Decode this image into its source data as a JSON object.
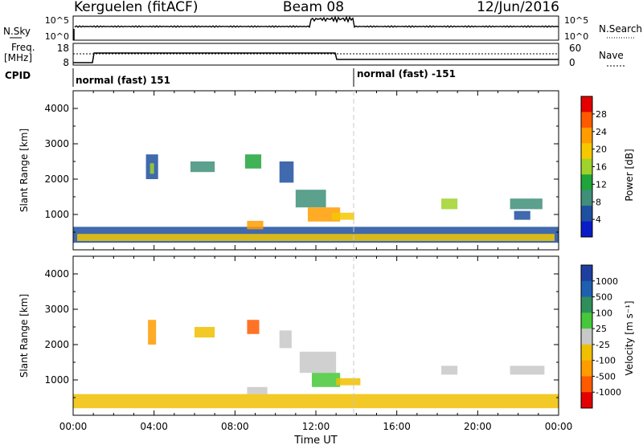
{
  "header": {
    "station": "Kerguelen (fitACF)",
    "beam": "Beam 08",
    "date": "12/Jun/2016"
  },
  "top_panel": {
    "left_label_1": "N.Sky",
    "left_ticks_1": [
      "10^5",
      "10^0"
    ],
    "right_label_1": "N.Search",
    "right_ticks_1": [
      "10^5",
      "10^0"
    ],
    "left_label_2": "Freq.",
    "left_label_2b": "[MHz]",
    "left_ticks_2": [
      "18",
      "8"
    ],
    "right_label_2": "Nave",
    "right_ticks_2": [
      "60",
      "0"
    ],
    "cpid_label": "CPID",
    "cpid_segments": [
      "normal (fast) 151",
      "normal (fast) -151"
    ]
  },
  "colors": {
    "line": "#000000",
    "divider": "#c8c8c8"
  },
  "chart_data": [
    {
      "type": "heatmap",
      "title": "",
      "xlabel": "Time UT",
      "ylabel": "Slant Range [km]",
      "x_ticks": [
        "00:00",
        "04:00",
        "08:00",
        "12:00",
        "16:00",
        "20:00",
        "00:00"
      ],
      "y_ticks": [
        "1000",
        "2000",
        "3000",
        "4000"
      ],
      "colorbar_label": "Power [dB]",
      "colorbar_ticks": [
        "28",
        "24",
        "20",
        "16",
        "12",
        "8",
        "4"
      ],
      "colorbar_colors": [
        "#e40000",
        "#ff5a00",
        "#ff9c00",
        "#f5c800",
        "#9fd22a",
        "#1fa53a",
        "#3f8f7a",
        "#1f4fa0",
        "#0a1cc8"
      ],
      "ylim": [
        0,
        4500
      ],
      "xlim_hours": [
        0,
        24
      ],
      "regions": [
        {
          "t0": 0.0,
          "t1": 24.0,
          "r0": 200,
          "r1": 650,
          "color": "#1f4fa0"
        },
        {
          "t0": 0.2,
          "t1": 23.8,
          "r0": 250,
          "r1": 450,
          "color": "#f5c800"
        },
        {
          "t0": 3.6,
          "t1": 4.2,
          "r0": 2000,
          "r1": 2700,
          "color": "#1f4fa0"
        },
        {
          "t0": 3.8,
          "t1": 4.0,
          "r0": 2150,
          "r1": 2450,
          "color": "#9fd22a"
        },
        {
          "t0": 5.8,
          "t1": 7.0,
          "r0": 2200,
          "r1": 2500,
          "color": "#3f8f7a"
        },
        {
          "t0": 8.5,
          "t1": 9.3,
          "r0": 2300,
          "r1": 2700,
          "color": "#1fa53a"
        },
        {
          "t0": 8.6,
          "t1": 9.4,
          "r0": 580,
          "r1": 820,
          "color": "#ff9c00"
        },
        {
          "t0": 10.2,
          "t1": 10.9,
          "r0": 1900,
          "r1": 2500,
          "color": "#1f4fa0"
        },
        {
          "t0": 11.0,
          "t1": 12.5,
          "r0": 1200,
          "r1": 1700,
          "color": "#3f8f7a"
        },
        {
          "t0": 11.6,
          "t1": 13.2,
          "r0": 800,
          "r1": 1200,
          "color": "#ff9c00"
        },
        {
          "t0": 12.8,
          "t1": 13.9,
          "r0": 850,
          "r1": 1050,
          "color": "#f5c800"
        },
        {
          "t0": 18.2,
          "t1": 19.0,
          "r0": 1150,
          "r1": 1450,
          "color": "#9fd22a"
        },
        {
          "t0": 21.6,
          "t1": 23.2,
          "r0": 1150,
          "r1": 1450,
          "color": "#3f8f7a"
        },
        {
          "t0": 21.8,
          "t1": 22.6,
          "r0": 850,
          "r1": 1100,
          "color": "#1f4fa0"
        }
      ]
    },
    {
      "type": "heatmap",
      "title": "",
      "xlabel": "Time UT",
      "ylabel": "Slant Range [km]",
      "x_ticks": [
        "00:00",
        "04:00",
        "08:00",
        "12:00",
        "16:00",
        "20:00",
        "00:00"
      ],
      "y_ticks": [
        "1000",
        "2000",
        "3000",
        "4000"
      ],
      "colorbar_label": "Velocity [m s⁻¹]",
      "colorbar_ticks": [
        "1000",
        "500",
        "100",
        "25",
        "-25",
        "-100",
        "-500",
        "-1000"
      ],
      "colorbar_colors": [
        "#1f3fa0",
        "#1f5fb0",
        "#2f8f5a",
        "#46c83a",
        "#c8c8c8",
        "#f0c000",
        "#ff9c00",
        "#ff5a00",
        "#e40000"
      ],
      "ylim": [
        0,
        4500
      ],
      "xlim_hours": [
        0,
        24
      ],
      "regions": [
        {
          "t0": 0.0,
          "t1": 24.0,
          "r0": 200,
          "r1": 600,
          "color": "#f0c000"
        },
        {
          "t0": 3.7,
          "t1": 4.1,
          "r0": 2000,
          "r1": 2700,
          "color": "#ff9c00"
        },
        {
          "t0": 6.0,
          "t1": 7.0,
          "r0": 2200,
          "r1": 2500,
          "color": "#f0c000"
        },
        {
          "t0": 8.6,
          "t1": 9.2,
          "r0": 2300,
          "r1": 2700,
          "color": "#ff5a00"
        },
        {
          "t0": 8.6,
          "t1": 9.6,
          "r0": 600,
          "r1": 800,
          "color": "#c8c8c8"
        },
        {
          "t0": 10.2,
          "t1": 10.8,
          "r0": 1900,
          "r1": 2400,
          "color": "#c8c8c8"
        },
        {
          "t0": 11.2,
          "t1": 13.0,
          "r0": 1200,
          "r1": 1800,
          "color": "#c8c8c8"
        },
        {
          "t0": 11.8,
          "t1": 13.2,
          "r0": 800,
          "r1": 1200,
          "color": "#46c83a"
        },
        {
          "t0": 13.0,
          "t1": 14.2,
          "r0": 850,
          "r1": 1050,
          "color": "#f0c000"
        },
        {
          "t0": 18.2,
          "t1": 19.0,
          "r0": 1150,
          "r1": 1400,
          "color": "#c8c8c8"
        },
        {
          "t0": 21.6,
          "t1": 23.3,
          "r0": 1150,
          "r1": 1400,
          "color": "#c8c8c8"
        }
      ]
    }
  ]
}
